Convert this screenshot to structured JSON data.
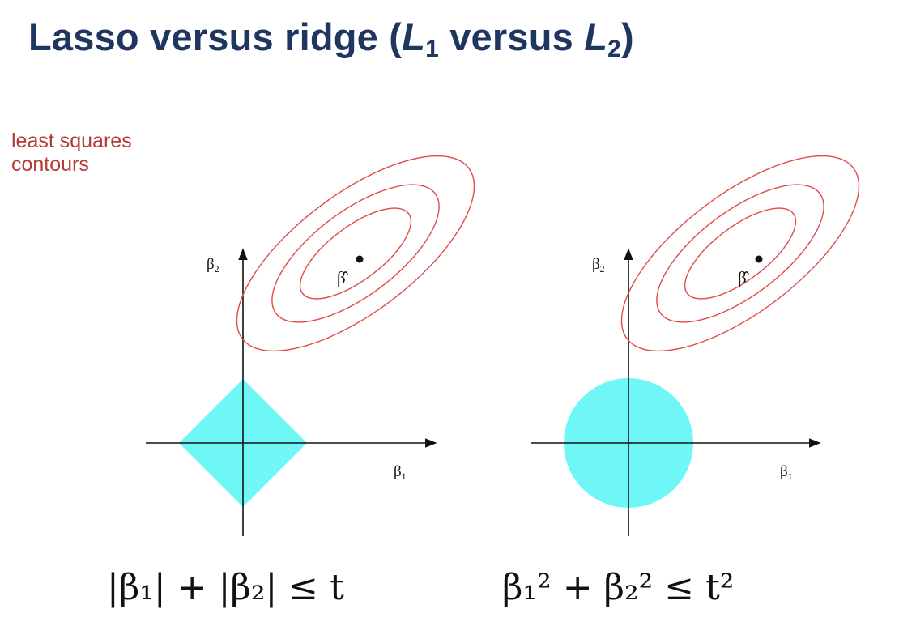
{
  "title": {
    "prefix": "Lasso versus ridge (",
    "l": "L",
    "sub1": "1",
    "mid": " versus ",
    "sub2": "2",
    "suffix": ")"
  },
  "callout": {
    "line1": "least squares",
    "line2": "contours"
  },
  "panels": [
    {
      "name": "lasso",
      "shape": "diamond",
      "ylabel": "β",
      "ylabel_sub": "2",
      "xlabel": "β",
      "xlabel_sub": "1",
      "estimate_label": "β̂"
    },
    {
      "name": "ridge",
      "shape": "disk",
      "ylabel": "β",
      "ylabel_sub": "2",
      "xlabel": "β",
      "xlabel_sub": "1",
      "estimate_label": "β̂"
    }
  ],
  "formulas": {
    "lasso": {
      "text": "|β₁| + |β₂| ≤ t"
    },
    "ridge": {
      "text": "β₁² + β₂² ≤ t²"
    }
  },
  "colors": {
    "title": "#1f3760",
    "callout": "#b63a36",
    "contour": "#e04a4a",
    "region": "#6ff7f7",
    "axis": "#111111"
  }
}
